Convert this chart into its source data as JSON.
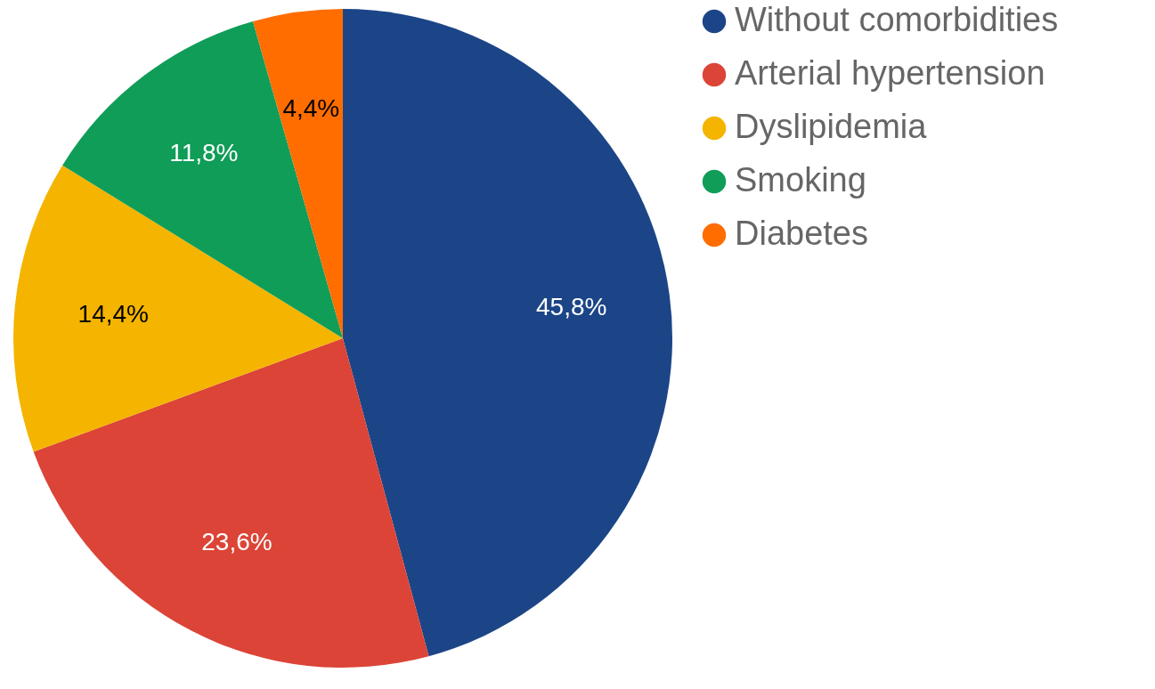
{
  "chart_data": {
    "type": "pie",
    "categories": [
      "Without comorbidities",
      "Arterial hypertension",
      "Dyslipidemia",
      "Smoking",
      "Diabetes"
    ],
    "values": [
      45.8,
      23.6,
      14.4,
      11.8,
      4.4
    ],
    "colors": [
      "#1c4587",
      "#db4437",
      "#f4b400",
      "#0f9d58",
      "#ff6d00"
    ],
    "value_labels": [
      "45,8%",
      "23,6%",
      "14,4%",
      "11,8%",
      "4,4%"
    ],
    "legend": "right"
  }
}
